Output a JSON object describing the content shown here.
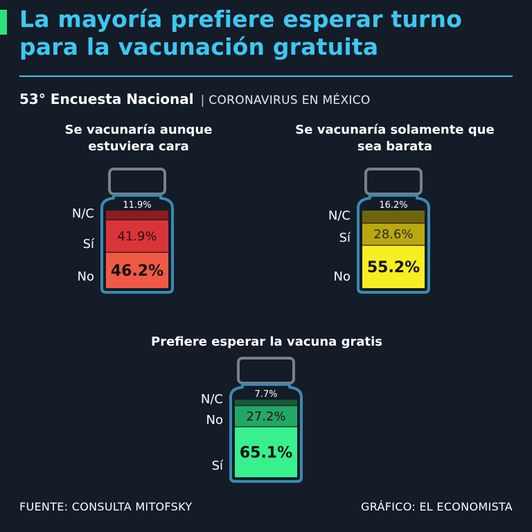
{
  "title": "La mayoría prefiere esperar turno para la vacunación gratuita",
  "subtitle": {
    "main": "53° Encuesta Nacional",
    "separator": "|",
    "secondary": "CORONAVIRUS EN MÉXICO"
  },
  "footer": {
    "source": "FUENTE: CONSULTA MITOFSKY",
    "credit": "GRÁFICO: EL ECONOMISTA"
  },
  "colors": {
    "title": "#3ec7f0",
    "accent": "#2ee07d",
    "background": "#141c28",
    "bottle_outline": "#3a8ab0",
    "cap_outline": "#7a8088"
  },
  "chart_data": [
    {
      "type": "bar",
      "title": "Se vacunaría aunque estuviera cara",
      "categories": [
        "No",
        "Sí",
        "N/C"
      ],
      "values": [
        46.2,
        41.9,
        11.9
      ],
      "labels": [
        "46.2%",
        "41.9%",
        "11.9%"
      ],
      "colors": [
        "#f05a44",
        "#d8353a",
        "#8a1d22"
      ]
    },
    {
      "type": "bar",
      "title": "Se vacunaría solamente que sea barata",
      "categories": [
        "No",
        "Sí",
        "N/C"
      ],
      "values": [
        55.2,
        28.6,
        16.2
      ],
      "labels": [
        "55.2%",
        "28.6%",
        "16.2%"
      ],
      "colors": [
        "#f7ee22",
        "#b9a80f",
        "#6f6510"
      ]
    },
    {
      "type": "bar",
      "title": "Prefiere esperar la vacuna gratis",
      "categories": [
        "Sí",
        "No",
        "N/C"
      ],
      "values": [
        65.1,
        27.2,
        7.7
      ],
      "labels": [
        "65.1%",
        "27.2%",
        "7.7%"
      ],
      "colors": [
        "#38f08e",
        "#22a866",
        "#17593a"
      ]
    }
  ]
}
